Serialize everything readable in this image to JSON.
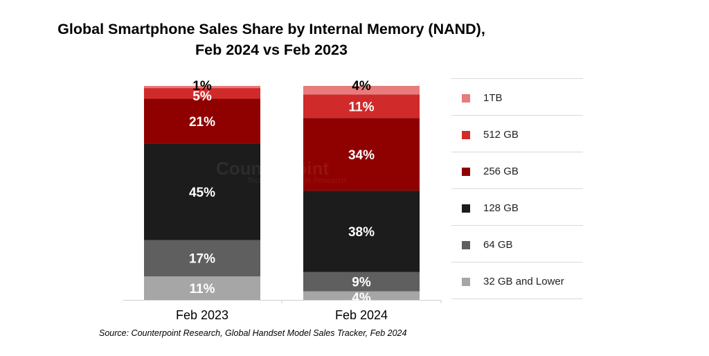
{
  "chart_data": {
    "type": "bar",
    "stacked": true,
    "title": "Global Smartphone Sales Share by Internal Memory (NAND), Feb 2024 vs Feb 2023",
    "title_lines": [
      "Global Smartphone Sales Share by Internal Memory (NAND),",
      "Feb 2024 vs Feb 2023"
    ],
    "xlabel": "",
    "ylabel": "",
    "ylim": [
      0,
      100
    ],
    "grid": false,
    "legend_position": "right",
    "categories": [
      "Feb 2023",
      "Feb 2024"
    ],
    "series": [
      {
        "name": "32 GB and Lower",
        "color": "#a6a6a6",
        "label_color": "#ffffff",
        "values": [
          11,
          4
        ]
      },
      {
        "name": "64 GB",
        "color": "#5f5f5f",
        "label_color": "#ffffff",
        "values": [
          17,
          9
        ]
      },
      {
        "name": "128 GB",
        "color": "#1c1c1c",
        "label_color": "#ffffff",
        "values": [
          45,
          38
        ]
      },
      {
        "name": "256 GB",
        "color": "#8f0000",
        "label_color": "#ffffff",
        "values": [
          21,
          34
        ]
      },
      {
        "name": "512 GB",
        "color": "#d02a2a",
        "label_color": "#ffffff",
        "values": [
          5,
          11
        ]
      },
      {
        "name": "1TB",
        "color": "#e87b7b",
        "label_color": "#000000",
        "values": [
          1,
          4
        ]
      }
    ],
    "legend_order": [
      "1TB",
      "512 GB",
      "256 GB",
      "128 GB",
      "64 GB",
      "32 GB and Lower"
    ],
    "source": "Source: Counterpoint Research, Global Handset Model Sales Tracker, Feb 2024",
    "watermark": {
      "name": "Counterpoint",
      "tagline": "Technology Market Research"
    }
  }
}
